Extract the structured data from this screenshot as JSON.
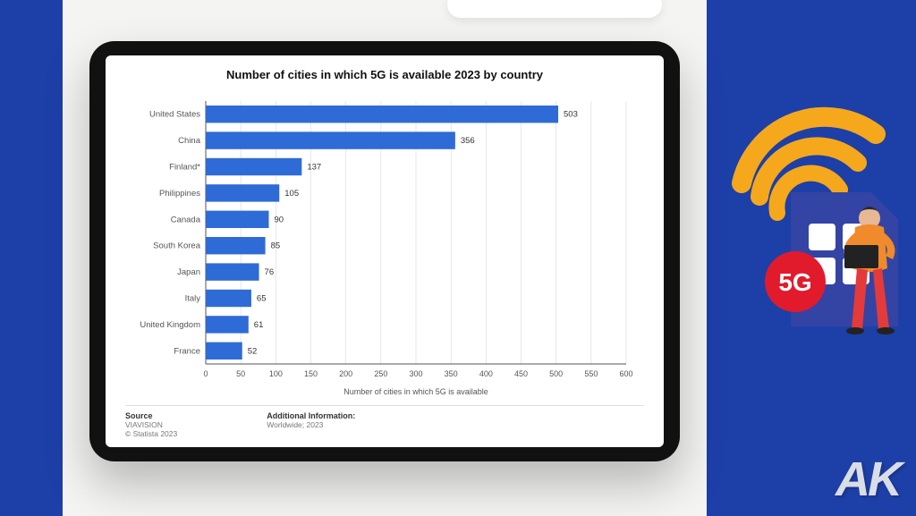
{
  "background_color": "#1d3fa8",
  "desk_color": "#f4f4f2",
  "tablet_frame_color": "#111111",
  "screen_color": "#ffffff",
  "chart": {
    "type": "bar-horizontal",
    "title": "Number of cities in which 5G is available 2023 by country",
    "title_fontsize": 13,
    "title_weight": "bold",
    "xlabel": "Number of cities in which 5G is available",
    "label_fontsize": 9,
    "bar_color": "#2f6bd6",
    "value_color": "#333333",
    "axis_color": "#555555",
    "grid_color": "#d8d8d8",
    "xlim": [
      0,
      600
    ],
    "xtick_step": 50,
    "data": [
      {
        "label": "United States",
        "value": 503
      },
      {
        "label": "China",
        "value": 356
      },
      {
        "label": "Finland*",
        "value": 137
      },
      {
        "label": "Philippines",
        "value": 105
      },
      {
        "label": "Canada",
        "value": 90
      },
      {
        "label": "South Korea",
        "value": 85
      },
      {
        "label": "Japan",
        "value": 76
      },
      {
        "label": "Italy",
        "value": 65
      },
      {
        "label": "United Kingdom",
        "value": 61
      },
      {
        "label": "France",
        "value": 52
      }
    ]
  },
  "footer": {
    "source_heading": "Source",
    "source_line1": "VIAVISION",
    "source_line2": "© Statista 2023",
    "addl_heading": "Additional Information:",
    "addl_line1": "Worldwide; 2023"
  },
  "logo_text": "AK",
  "illustration": {
    "wifi_color": "#f5a81c",
    "sim_color": "#3344a5",
    "sim_accent": "#ffffff",
    "badge_color": "#e11b2c",
    "badge_text": "5G",
    "person_shirt": "#f08a2a",
    "person_pants": "#e43a3a",
    "person_skin": "#e8b793",
    "person_hair": "#2a2a2a",
    "laptop_color": "#222222"
  }
}
